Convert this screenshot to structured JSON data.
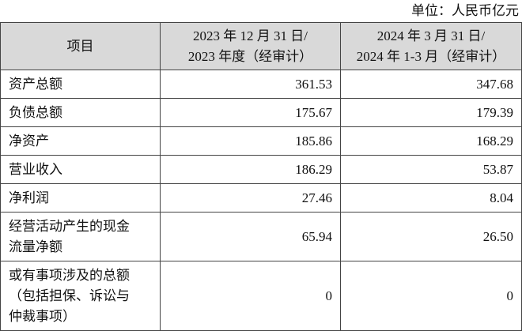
{
  "unit": "单位：人民币亿元",
  "table": {
    "header": [
      [
        "项目"
      ],
      [
        "2023 年 12 月 31 日/",
        "2023 年度（经审计）"
      ],
      [
        "2024 年 3 月 31 日/",
        "2024 年 1-3 月（经审计）"
      ]
    ],
    "rows": [
      [
        [
          "资产总额"
        ],
        [
          "361.53"
        ],
        [
          "347.68"
        ]
      ],
      [
        [
          "负债总额"
        ],
        [
          "175.67"
        ],
        [
          "179.39"
        ]
      ],
      [
        [
          "净资产"
        ],
        [
          "185.86"
        ],
        [
          "168.29"
        ]
      ],
      [
        [
          "营业收入"
        ],
        [
          "186.29"
        ],
        [
          "53.87"
        ]
      ],
      [
        [
          "净利润"
        ],
        [
          "27.46"
        ],
        [
          "8.04"
        ]
      ],
      [
        [
          "经营活动产生的现金",
          "流量净额"
        ],
        [
          "65.94"
        ],
        [
          "26.50"
        ]
      ],
      [
        [
          "或有事项涉及的总额",
          "（包括担保、诉讼与",
          "仲裁事项）"
        ],
        [
          "0"
        ],
        [
          "0"
        ]
      ]
    ]
  }
}
